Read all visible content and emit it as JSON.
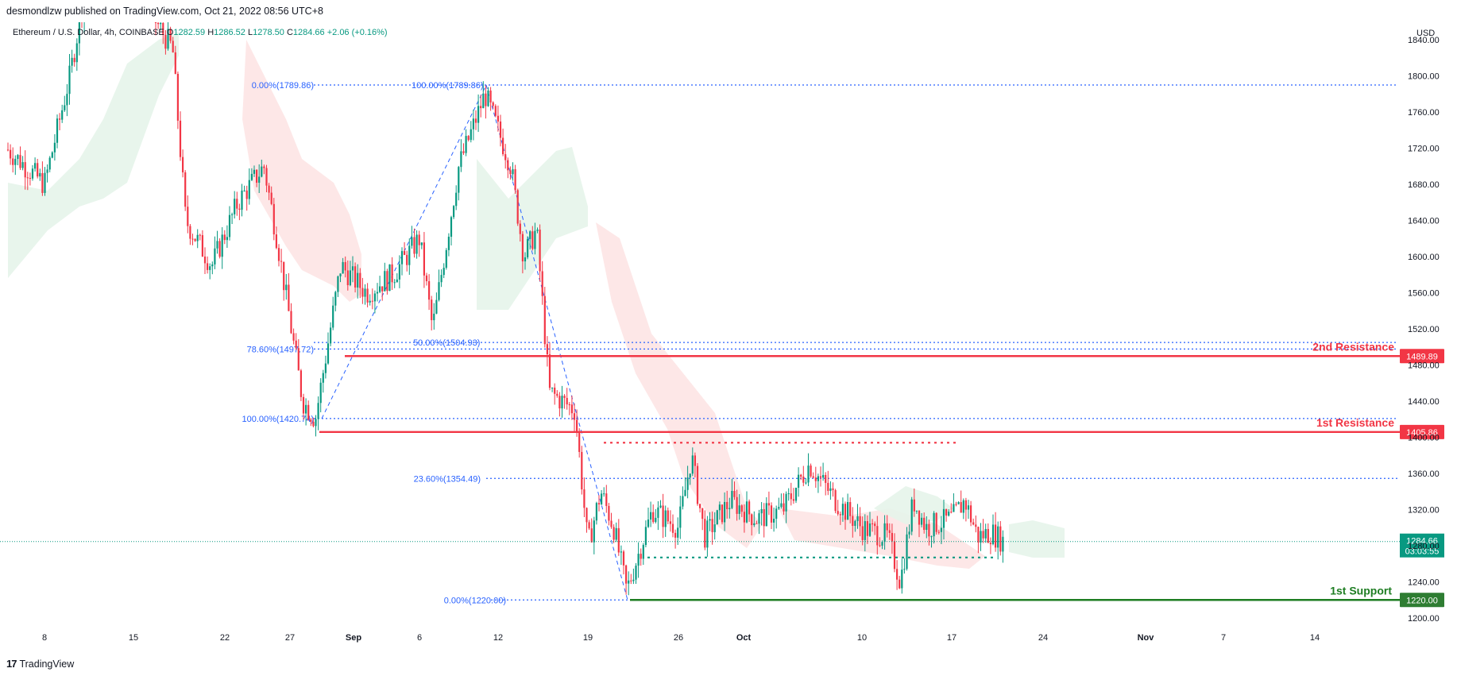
{
  "header": {
    "publisher_line": "desmondlzw published on TradingView.com, Oct 21, 2022 08:56 UTC+8"
  },
  "symbol": {
    "name": "Ethereum / U.S. Dollar, 4h, COINBASE",
    "o_label": "O",
    "o_value": "1282.59",
    "h_label": "H",
    "h_value": "1286.52",
    "l_label": "L",
    "l_value": "1278.50",
    "c_label": "C",
    "c_value": "1284.66",
    "change": "+2.06 (+0.16%)"
  },
  "footer": {
    "brand": "TradingView"
  },
  "colors": {
    "up": "#089981",
    "down": "#f23645",
    "fib": "#2962ff",
    "resistance": "#f23645",
    "support": "#1e7d22",
    "cloud_green": "#e6f4ea",
    "cloud_red": "#fde4e4"
  },
  "chart_data": {
    "type": "candlestick",
    "currency_label": "USD",
    "x_tick_labels": [
      "8",
      "15",
      "22",
      "27",
      "Sep",
      "6",
      "12",
      "19",
      "26",
      "Oct",
      "10",
      "17",
      "24",
      "Nov",
      "7",
      "14"
    ],
    "y_range": [
      1190,
      1850
    ],
    "y_ticks": [
      "1200.00",
      "1240.00",
      "1280.00",
      "1320.00",
      "1360.00",
      "1400.00",
      "1440.00",
      "1480.00",
      "1520.00",
      "1560.00",
      "1600.00",
      "1640.00",
      "1680.00",
      "1720.00",
      "1760.00",
      "1800.00",
      "1840.00"
    ],
    "price_path": [
      {
        "x": "Aug 3",
        "price": 1640
      },
      {
        "x": "Aug 5",
        "price": 1720
      },
      {
        "x": "Aug 8",
        "price": 1680
      },
      {
        "x": "Aug 10",
        "price": 1800
      },
      {
        "x": "Aug 11",
        "price": 1880
      },
      {
        "x": "Aug 13",
        "price": 1980
      },
      {
        "x": "Aug 15",
        "price": 1900
      },
      {
        "x": "Aug 18",
        "price": 1830
      },
      {
        "x": "Aug 19",
        "price": 1640
      },
      {
        "x": "Aug 21",
        "price": 1590
      },
      {
        "x": "Aug 23",
        "price": 1660
      },
      {
        "x": "Aug 25",
        "price": 1700
      },
      {
        "x": "Aug 26",
        "price": 1620
      },
      {
        "x": "Aug 28",
        "price": 1440
      },
      {
        "x": "Aug 29",
        "price": 1420
      },
      {
        "x": "Aug 31",
        "price": 1590
      },
      {
        "x": "Sep 2",
        "price": 1560
      },
      {
        "x": "Sep 4",
        "price": 1580
      },
      {
        "x": "Sep 6",
        "price": 1620
      },
      {
        "x": "Sep 7",
        "price": 1520
      },
      {
        "x": "Sep 9",
        "price": 1700
      },
      {
        "x": "Sep 11",
        "price": 1780
      },
      {
        "x": "Sep 13",
        "price": 1700
      },
      {
        "x": "Sep 14",
        "price": 1600
      },
      {
        "x": "Sep 15",
        "price": 1630
      },
      {
        "x": "Sep 16",
        "price": 1450
      },
      {
        "x": "Sep 18",
        "price": 1430
      },
      {
        "x": "Sep 19",
        "price": 1280
      },
      {
        "x": "Sep 20",
        "price": 1340
      },
      {
        "x": "Sep 21",
        "price": 1300
      },
      {
        "x": "Sep 22",
        "price": 1230
      },
      {
        "x": "Sep 24",
        "price": 1320
      },
      {
        "x": "Sep 26",
        "price": 1300
      },
      {
        "x": "Sep 27",
        "price": 1380
      },
      {
        "x": "Sep 28",
        "price": 1290
      },
      {
        "x": "Sep 30",
        "price": 1330
      },
      {
        "x": "Oct 2",
        "price": 1310
      },
      {
        "x": "Oct 4",
        "price": 1320
      },
      {
        "x": "Oct 6",
        "price": 1370
      },
      {
        "x": "Oct 8",
        "price": 1330
      },
      {
        "x": "Oct 10",
        "price": 1300
      },
      {
        "x": "Oct 12",
        "price": 1290
      },
      {
        "x": "Oct 13",
        "price": 1240
      },
      {
        "x": "Oct 14",
        "price": 1330
      },
      {
        "x": "Oct 15",
        "price": 1300
      },
      {
        "x": "Oct 17",
        "price": 1310
      },
      {
        "x": "Oct 18",
        "price": 1330
      },
      {
        "x": "Oct 19",
        "price": 1290
      },
      {
        "x": "Oct 20",
        "price": 1295
      },
      {
        "x": "Oct 21",
        "price": 1284.66
      }
    ],
    "fib_labels": [
      {
        "text": "0.00%(1789.86)",
        "price": 1789.86
      },
      {
        "text": "100.00%(1789.86)",
        "price": 1789.86
      },
      {
        "text": "78.60%(1497.72)",
        "price": 1497.72
      },
      {
        "text": "50.00%(1504.93)",
        "price": 1504.93
      },
      {
        "text": "100.00%(1420.74)",
        "price": 1420.74
      },
      {
        "text": "23.60%(1354.49)",
        "price": 1354.49
      },
      {
        "text": "0.00%(1220.00)",
        "price": 1220.0
      }
    ],
    "levels": [
      {
        "name": "2nd Resistance",
        "price_label": "1489.89",
        "price": 1489.89,
        "kind": "resistance"
      },
      {
        "name": "1st Resistance",
        "price_label": "1405.86",
        "price": 1405.86,
        "kind": "resistance"
      },
      {
        "name": "1st Support",
        "price_label": "1220.00",
        "price": 1220.0,
        "kind": "support"
      }
    ],
    "current_price": {
      "label": "1284.66",
      "countdown": "03:03:55",
      "price": 1284.66
    },
    "reference_dotted_levels": [
      {
        "color": "red",
        "price": 1394
      },
      {
        "color": "green",
        "price": 1267
      }
    ],
    "grid": false,
    "legend": "top-left"
  }
}
